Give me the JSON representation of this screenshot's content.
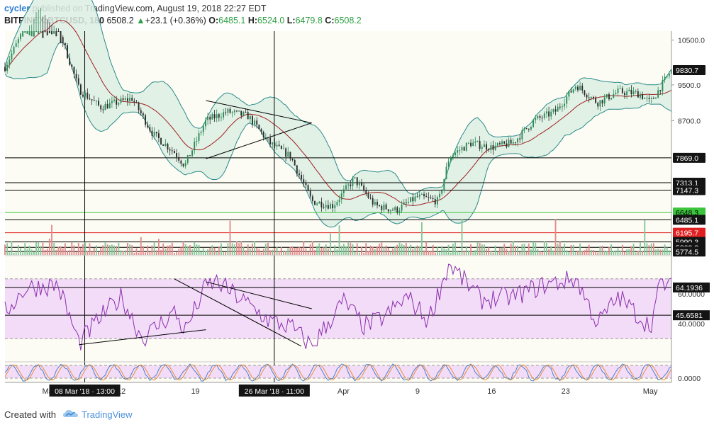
{
  "header": {
    "line1_user": "cycler",
    "line1_rest": " published on TradingView.com, August 19, 2018 22:27 EDT",
    "symbol": "BITFINEX:BTCUSD, 180",
    "last": "6508.2",
    "change": "+23.1 (+0.36%)",
    "o_label": "O:",
    "o": "6485.1",
    "h_label": "H:",
    "h": "6524.0",
    "l_label": "L:",
    "l": "6479.8",
    "c_label": "C:",
    "c": "6508.2"
  },
  "footer": {
    "created_with": "Created with",
    "brand": "TradingView"
  },
  "x_ticks": [
    "Mar",
    "12",
    "19",
    "26",
    "Apr",
    "9",
    "16",
    "23",
    "May"
  ],
  "time_labels": [
    "08 Mar '18 · 13:00",
    "26 Mar '18 · 11:00"
  ],
  "price_axis_labels": [
    "10500.0",
    "9500.0",
    "8700.0"
  ],
  "price_levels": [
    {
      "label": "9830.7",
      "value": 9830.7,
      "style": "badge-dark"
    },
    {
      "label": "7869.0",
      "value": 7869.0,
      "style": "badge-dark"
    },
    {
      "label": "7313.1",
      "value": 7313.1,
      "style": "badge-dark"
    },
    {
      "label": "7147.3",
      "value": 7147.3,
      "style": "badge-dark"
    },
    {
      "label": "6648.3",
      "value": 6648.3,
      "style": "badge-green"
    },
    {
      "label": "6485.1",
      "value": 6485.1,
      "style": "badge-dark"
    },
    {
      "label": "6195.7",
      "value": 6195.7,
      "style": "badge-red"
    },
    {
      "label": "5990.3",
      "value": 5990.3,
      "style": "badge-dark"
    },
    {
      "label": "5869.3",
      "value": 5869.3,
      "style": "badge-dark"
    },
    {
      "label": "5774.5",
      "value": 5774.5,
      "style": "badge-dark"
    }
  ],
  "rsi_axis_labels": [
    "60.0000",
    "40.0000"
  ],
  "rsi_levels": [
    {
      "label": "64.1936",
      "value": 64.1936
    },
    {
      "label": "45.6581",
      "value": 45.6581
    }
  ],
  "stoch_axis_label": "0.0000",
  "colors": {
    "bg": "#fdfcf4",
    "up": "#2e8b57",
    "down": "#2b2b2b",
    "bb": "#2a8a8a",
    "bb_fill": "#dcefe3",
    "ma": "#a02020",
    "rsi": "#8b2fb0",
    "rsi_fill": "#f3dcf7",
    "vol_up": "#85c79a",
    "vol_down": "#e38b8b",
    "green_level": "#3cc43c",
    "red_level": "#e02020",
    "badge": "#141414"
  },
  "chart_data": {
    "type": "candlestick",
    "title": "BITFINEX:BTCUSD, 180",
    "y_axis_range": [
      5700,
      10700
    ],
    "x_range": [
      "2018-03-01",
      "2018-05-03"
    ],
    "key_points": [
      {
        "date": "2018-03-01",
        "close": 9900
      },
      {
        "date": "2018-03-04",
        "close": 11300
      },
      {
        "date": "2018-03-06",
        "close": 10800
      },
      {
        "date": "2018-03-08",
        "close": 9400
      },
      {
        "date": "2018-03-10",
        "close": 9000
      },
      {
        "date": "2018-03-13",
        "close": 9200
      },
      {
        "date": "2018-03-15",
        "close": 8400
      },
      {
        "date": "2018-03-17",
        "close": 8000
      },
      {
        "date": "2018-03-18",
        "close": 7700
      },
      {
        "date": "2018-03-20",
        "close": 8700
      },
      {
        "date": "2018-03-22",
        "close": 8900
      },
      {
        "date": "2018-03-24",
        "close": 8800
      },
      {
        "date": "2018-03-26",
        "close": 8200
      },
      {
        "date": "2018-03-28",
        "close": 7900
      },
      {
        "date": "2018-03-30",
        "close": 6900
      },
      {
        "date": "2018-04-01",
        "close": 6800
      },
      {
        "date": "2018-04-03",
        "close": 7400
      },
      {
        "date": "2018-04-05",
        "close": 6800
      },
      {
        "date": "2018-04-07",
        "close": 6700
      },
      {
        "date": "2018-04-09",
        "close": 7000
      },
      {
        "date": "2018-04-11",
        "close": 6900
      },
      {
        "date": "2018-04-12",
        "close": 7900
      },
      {
        "date": "2018-04-14",
        "close": 8200
      },
      {
        "date": "2018-04-16",
        "close": 8100
      },
      {
        "date": "2018-04-18",
        "close": 8200
      },
      {
        "date": "2018-04-20",
        "close": 8700
      },
      {
        "date": "2018-04-22",
        "close": 8900
      },
      {
        "date": "2018-04-24",
        "close": 9500
      },
      {
        "date": "2018-04-26",
        "close": 9100
      },
      {
        "date": "2018-04-28",
        "close": 9350
      },
      {
        "date": "2018-04-30",
        "close": 9300
      },
      {
        "date": "2018-05-01",
        "close": 9100
      },
      {
        "date": "2018-05-03",
        "close": 9830
      }
    ],
    "rsi_key_points": [
      {
        "date": "2018-03-01",
        "value": 48
      },
      {
        "date": "2018-03-03",
        "value": 64
      },
      {
        "date": "2018-03-06",
        "value": 66
      },
      {
        "date": "2018-03-08",
        "value": 27
      },
      {
        "date": "2018-03-10",
        "value": 44
      },
      {
        "date": "2018-03-12",
        "value": 58
      },
      {
        "date": "2018-03-14",
        "value": 30
      },
      {
        "date": "2018-03-17",
        "value": 48
      },
      {
        "date": "2018-03-18",
        "value": 35
      },
      {
        "date": "2018-03-20",
        "value": 65
      },
      {
        "date": "2018-03-21",
        "value": 68
      },
      {
        "date": "2018-03-23",
        "value": 58
      },
      {
        "date": "2018-03-26",
        "value": 42
      },
      {
        "date": "2018-03-28",
        "value": 38
      },
      {
        "date": "2018-03-30",
        "value": 25
      },
      {
        "date": "2018-04-02",
        "value": 55
      },
      {
        "date": "2018-04-04",
        "value": 38
      },
      {
        "date": "2018-04-06",
        "value": 45
      },
      {
        "date": "2018-04-08",
        "value": 58
      },
      {
        "date": "2018-04-10",
        "value": 42
      },
      {
        "date": "2018-04-12",
        "value": 80
      },
      {
        "date": "2018-04-15",
        "value": 56
      },
      {
        "date": "2018-04-18",
        "value": 58
      },
      {
        "date": "2018-04-21",
        "value": 66
      },
      {
        "date": "2018-04-24",
        "value": 70
      },
      {
        "date": "2018-04-26",
        "value": 40
      },
      {
        "date": "2018-04-28",
        "value": 58
      },
      {
        "date": "2018-05-01",
        "value": 38
      },
      {
        "date": "2018-05-02",
        "value": 68
      },
      {
        "date": "2018-05-03",
        "value": 64
      }
    ],
    "indicators": [
      "Bollinger Bands",
      "Moving Average",
      "Volume",
      "RSI",
      "Stochastic RSI"
    ]
  }
}
